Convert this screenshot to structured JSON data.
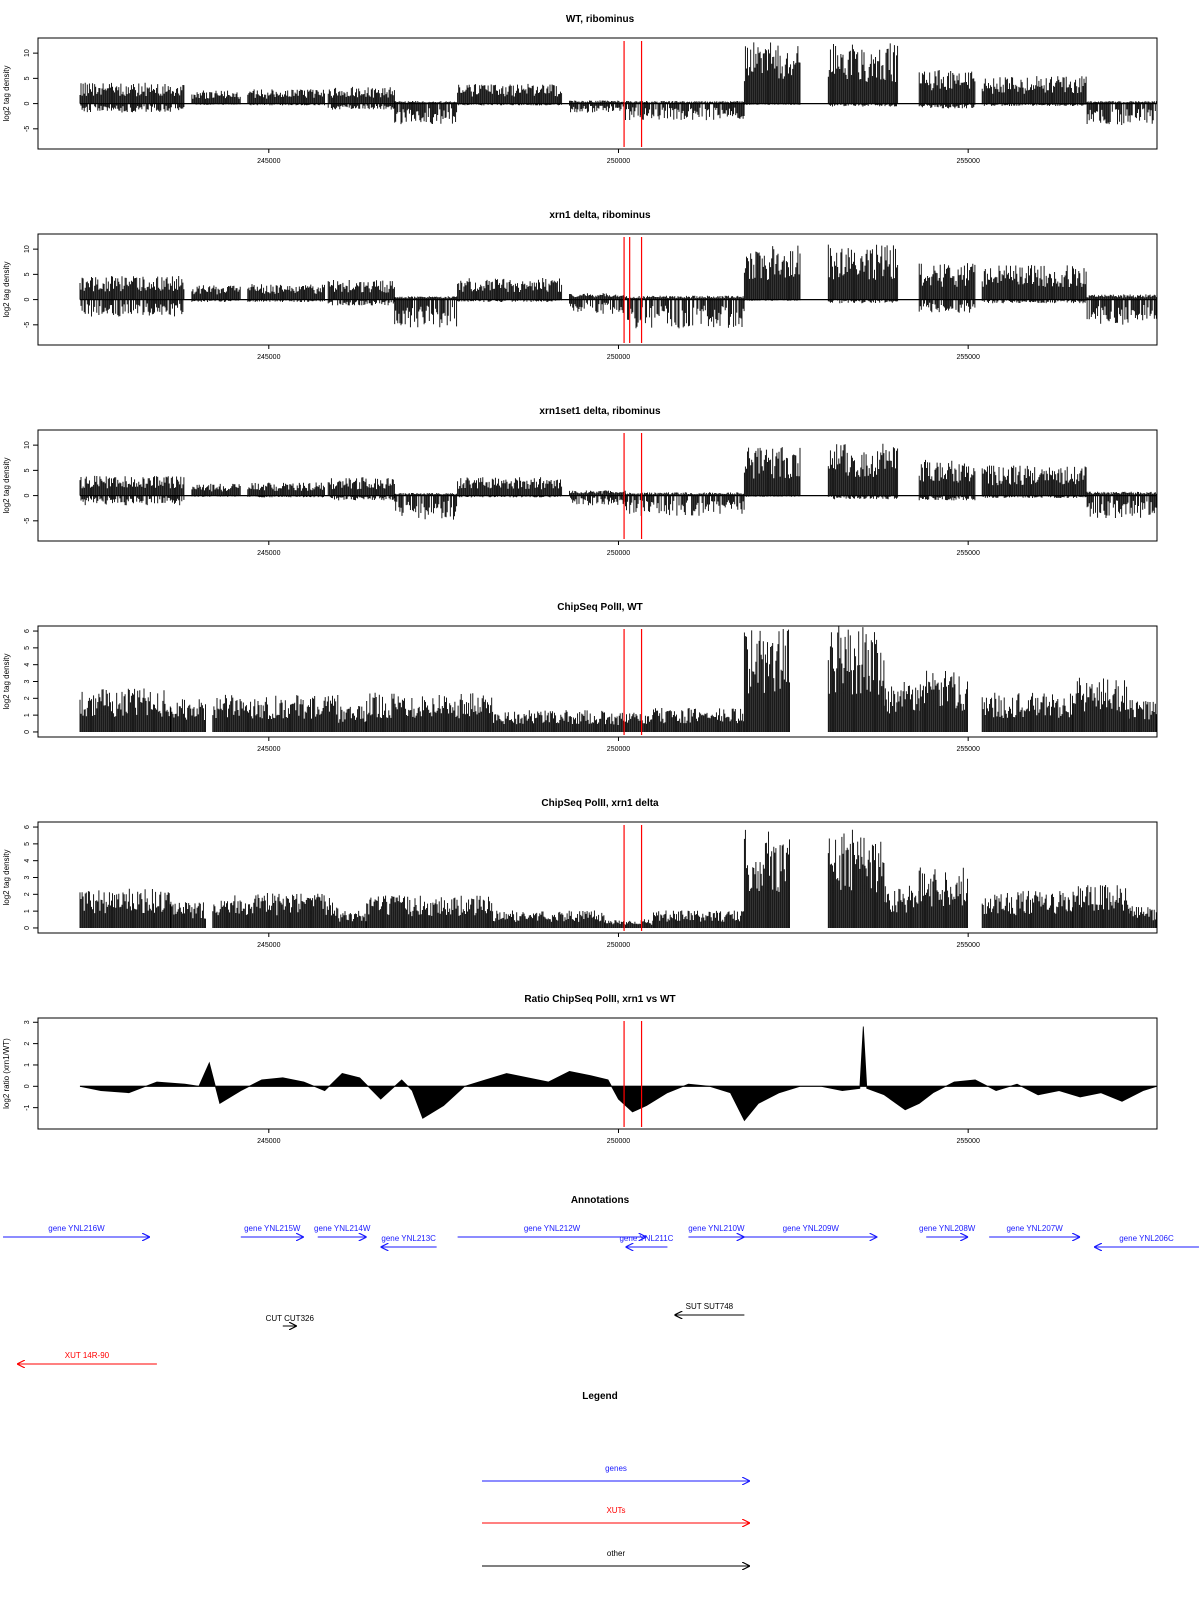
{
  "figure": {
    "type": "genome-browser-tracks"
  },
  "chart_data": [
    {
      "type": "bar",
      "title": "WT, ribominus",
      "ylabel": "log2 tag density",
      "xlim": [
        241700,
        257700
      ],
      "ylim": [
        -9,
        13
      ],
      "xticks": [
        245000,
        250000,
        255000
      ],
      "yticks": [
        -5,
        0,
        5,
        10
      ],
      "ytick_labels": [
        "-5",
        "0",
        "5",
        "10"
      ],
      "markers_x": [
        250080,
        250330
      ],
      "segments": [
        {
          "x": [
            242300,
            243800
          ],
          "pos": 3.2,
          "neg": 1.5
        },
        {
          "x": [
            243900,
            244600
          ],
          "pos": 2.0,
          "neg": 0.2
        },
        {
          "x": [
            244700,
            245800
          ],
          "pos": 2.2,
          "neg": 0.3
        },
        {
          "x": [
            245850,
            246800
          ],
          "pos": 2.6,
          "neg": 1.0
        },
        {
          "x": [
            246800,
            247700
          ],
          "pos": 0.4,
          "neg": 3.4
        },
        {
          "x": [
            247700,
            249200
          ],
          "pos": 3.0,
          "neg": 0.3
        },
        {
          "x": [
            249300,
            250100
          ],
          "pos": 0.5,
          "neg": 1.5
        },
        {
          "x": [
            250100,
            251800
          ],
          "pos": 0.4,
          "neg": 2.8
        },
        {
          "x": [
            251800,
            252600
          ],
          "pos": 9.5,
          "neg": 0.2
        },
        {
          "x": [
            252600,
            253000
          ],
          "pos": 0.0,
          "neg": 0.0
        },
        {
          "x": [
            253000,
            254000
          ],
          "pos": 9.2,
          "neg": 0.5
        },
        {
          "x": [
            254300,
            255100
          ],
          "pos": 5.2,
          "neg": 0.8
        },
        {
          "x": [
            255200,
            256700
          ],
          "pos": 4.2,
          "neg": 0.4
        },
        {
          "x": [
            256700,
            257700
          ],
          "pos": 0.4,
          "neg": 3.6
        }
      ]
    },
    {
      "type": "bar",
      "title": "xrn1 delta, ribominus",
      "ylabel": "log2 tag density",
      "xlim": [
        241700,
        257700
      ],
      "ylim": [
        -9,
        13
      ],
      "xticks": [
        245000,
        250000,
        255000
      ],
      "yticks": [
        -5,
        0,
        5,
        10
      ],
      "ytick_labels": [
        "-5",
        "0",
        "5",
        "10"
      ],
      "markers_x": [
        250080,
        250160,
        250330
      ],
      "segments": [
        {
          "x": [
            242300,
            243800
          ],
          "pos": 3.6,
          "neg": 2.8
        },
        {
          "x": [
            243900,
            244600
          ],
          "pos": 2.2,
          "neg": 0.4
        },
        {
          "x": [
            244700,
            245800
          ],
          "pos": 2.4,
          "neg": 0.4
        },
        {
          "x": [
            245850,
            246800
          ],
          "pos": 3.0,
          "neg": 1.0
        },
        {
          "x": [
            246800,
            247700
          ],
          "pos": 0.5,
          "neg": 4.6
        },
        {
          "x": [
            247700,
            249200
          ],
          "pos": 3.3,
          "neg": 0.4
        },
        {
          "x": [
            249300,
            250100
          ],
          "pos": 1.0,
          "neg": 2.4
        },
        {
          "x": [
            250100,
            251800
          ],
          "pos": 0.6,
          "neg": 4.8
        },
        {
          "x": [
            251800,
            252600
          ],
          "pos": 8.3,
          "neg": 0.2
        },
        {
          "x": [
            252600,
            253000
          ],
          "pos": 0.0,
          "neg": 0.0
        },
        {
          "x": [
            253000,
            254000
          ],
          "pos": 8.6,
          "neg": 0.6
        },
        {
          "x": [
            254300,
            255100
          ],
          "pos": 5.6,
          "neg": 2.2
        },
        {
          "x": [
            255200,
            256700
          ],
          "pos": 5.3,
          "neg": 0.6
        },
        {
          "x": [
            256700,
            257700
          ],
          "pos": 0.8,
          "neg": 4.2
        }
      ]
    },
    {
      "type": "bar",
      "title": "xrn1set1 delta, ribominus",
      "ylabel": "log2 tag density",
      "xlim": [
        241700,
        257700
      ],
      "ylim": [
        -9,
        13
      ],
      "xticks": [
        245000,
        250000,
        255000
      ],
      "yticks": [
        -5,
        0,
        5,
        10
      ],
      "ytick_labels": [
        "-5",
        "0",
        "5",
        "10"
      ],
      "markers_x": [
        250080,
        250330
      ],
      "segments": [
        {
          "x": [
            242300,
            243800
          ],
          "pos": 3.0,
          "neg": 1.6
        },
        {
          "x": [
            243900,
            244600
          ],
          "pos": 1.8,
          "neg": 0.2
        },
        {
          "x": [
            244700,
            245800
          ],
          "pos": 2.0,
          "neg": 0.3
        },
        {
          "x": [
            245850,
            246800
          ],
          "pos": 2.8,
          "neg": 0.8
        },
        {
          "x": [
            246800,
            247700
          ],
          "pos": 0.4,
          "neg": 4.0
        },
        {
          "x": [
            247700,
            249200
          ],
          "pos": 2.8,
          "neg": 0.3
        },
        {
          "x": [
            249300,
            250100
          ],
          "pos": 0.8,
          "neg": 1.6
        },
        {
          "x": [
            250100,
            251800
          ],
          "pos": 0.5,
          "neg": 3.4
        },
        {
          "x": [
            251800,
            252600
          ],
          "pos": 7.5,
          "neg": 0.2
        },
        {
          "x": [
            252600,
            253000
          ],
          "pos": 0.0,
          "neg": 0.0
        },
        {
          "x": [
            253000,
            254000
          ],
          "pos": 8.0,
          "neg": 0.6
        },
        {
          "x": [
            254300,
            255100
          ],
          "pos": 5.5,
          "neg": 0.8
        },
        {
          "x": [
            255200,
            256700
          ],
          "pos": 4.6,
          "neg": 0.4
        },
        {
          "x": [
            256700,
            257700
          ],
          "pos": 0.6,
          "neg": 3.8
        }
      ]
    },
    {
      "type": "bar",
      "title": "ChipSeq PolII, WT",
      "ylabel": "log2 tag density",
      "xlim": [
        241700,
        257700
      ],
      "ylim": [
        -0.3,
        6.3
      ],
      "xticks": [
        245000,
        250000,
        255000
      ],
      "yticks": [
        0,
        1,
        2,
        3,
        4,
        5,
        6
      ],
      "ytick_labels": [
        "0",
        "1",
        "2",
        "3",
        "4",
        "5",
        "6"
      ],
      "markers_x": [
        250080,
        250330
      ],
      "segments": [
        {
          "x": [
            242300,
            243600
          ],
          "pos": 2.0
        },
        {
          "x": [
            243600,
            244100
          ],
          "pos": 1.5
        },
        {
          "x": [
            244100,
            244200
          ],
          "pos": 0.0
        },
        {
          "x": [
            244200,
            246000
          ],
          "pos": 1.7
        },
        {
          "x": [
            246000,
            246400
          ],
          "pos": 1.2
        },
        {
          "x": [
            246400,
            248200
          ],
          "pos": 1.8
        },
        {
          "x": [
            248200,
            249800
          ],
          "pos": 1.0
        },
        {
          "x": [
            249800,
            250500
          ],
          "pos": 0.9
        },
        {
          "x": [
            250500,
            251800
          ],
          "pos": 1.1
        },
        {
          "x": [
            251800,
            252450
          ],
          "pos": 4.8
        },
        {
          "x": [
            252450,
            253000
          ],
          "pos": 0.0
        },
        {
          "x": [
            253000,
            253800
          ],
          "pos": 4.9
        },
        {
          "x": [
            253800,
            254300
          ],
          "pos": 2.3
        },
        {
          "x": [
            254300,
            255000
          ],
          "pos": 2.8
        },
        {
          "x": [
            255000,
            255200
          ],
          "pos": 0.0
        },
        {
          "x": [
            255200,
            256500
          ],
          "pos": 1.8
        },
        {
          "x": [
            256500,
            257300
          ],
          "pos": 2.5
        },
        {
          "x": [
            257300,
            257700
          ],
          "pos": 1.5
        }
      ]
    },
    {
      "type": "bar",
      "title": "ChipSeq PolII, xrn1 delta",
      "ylabel": "log2 tag density",
      "xlim": [
        241700,
        257700
      ],
      "ylim": [
        -0.3,
        6.3
      ],
      "xticks": [
        245000,
        250000,
        255000
      ],
      "yticks": [
        0,
        1,
        2,
        3,
        4,
        5,
        6
      ],
      "ytick_labels": [
        "0",
        "1",
        "2",
        "3",
        "4",
        "5",
        "6"
      ],
      "markers_x": [
        250080,
        250330
      ],
      "segments": [
        {
          "x": [
            242300,
            243600
          ],
          "pos": 1.8
        },
        {
          "x": [
            243600,
            244100
          ],
          "pos": 1.2
        },
        {
          "x": [
            244100,
            244200
          ],
          "pos": 0.0
        },
        {
          "x": [
            244200,
            246000
          ],
          "pos": 1.6
        },
        {
          "x": [
            246000,
            246400
          ],
          "pos": 0.8
        },
        {
          "x": [
            246400,
            248200
          ],
          "pos": 1.5
        },
        {
          "x": [
            248200,
            249800
          ],
          "pos": 0.8
        },
        {
          "x": [
            249800,
            250500
          ],
          "pos": 0.4
        },
        {
          "x": [
            250500,
            251800
          ],
          "pos": 0.8
        },
        {
          "x": [
            251800,
            252450
          ],
          "pos": 4.5
        },
        {
          "x": [
            252450,
            253000
          ],
          "pos": 0.0
        },
        {
          "x": [
            253000,
            253800
          ],
          "pos": 4.5
        },
        {
          "x": [
            253800,
            254300
          ],
          "pos": 2.0
        },
        {
          "x": [
            254300,
            255000
          ],
          "pos": 2.8
        },
        {
          "x": [
            255000,
            255200
          ],
          "pos": 0.0
        },
        {
          "x": [
            255200,
            256500
          ],
          "pos": 1.7
        },
        {
          "x": [
            256500,
            257300
          ],
          "pos": 2.0
        },
        {
          "x": [
            257300,
            257700
          ],
          "pos": 1.0
        }
      ]
    },
    {
      "type": "area",
      "title": "Ratio ChipSeq PolII, xrn1 vs WT",
      "ylabel": "log2 ratio (xrn1/WT)",
      "xlim": [
        241700,
        257700
      ],
      "ylim": [
        -2.0,
        3.2
      ],
      "xticks": [
        245000,
        250000,
        255000
      ],
      "yticks": [
        -1,
        0,
        1,
        2,
        3
      ],
      "ytick_labels": [
        "-1",
        "0",
        "1",
        "2",
        "3"
      ],
      "markers_x": [
        250080,
        250330
      ],
      "x": [
        242300,
        242600,
        243000,
        243400,
        243800,
        244000,
        244150,
        244300,
        244600,
        244900,
        245200,
        245500,
        245800,
        246050,
        246300,
        246600,
        246900,
        247050,
        247200,
        247500,
        247800,
        248100,
        248400,
        248700,
        249000,
        249300,
        249600,
        249850,
        250000,
        250200,
        250400,
        250700,
        251000,
        251300,
        251600,
        251800,
        252000,
        252300,
        252600,
        252900,
        253200,
        253450,
        253500,
        253550,
        253800,
        254100,
        254300,
        254500,
        254800,
        255100,
        255400,
        255700,
        256000,
        256300,
        256600,
        256900,
        257200,
        257500,
        257700
      ],
      "y": [
        0.0,
        -0.2,
        -0.3,
        0.2,
        0.1,
        0.0,
        1.1,
        -0.8,
        -0.2,
        0.3,
        0.4,
        0.2,
        -0.2,
        0.6,
        0.4,
        -0.6,
        0.3,
        -0.2,
        -1.5,
        -0.9,
        0.0,
        0.3,
        0.6,
        0.4,
        0.2,
        0.7,
        0.5,
        0.3,
        -0.6,
        -1.2,
        -0.9,
        -0.3,
        0.1,
        0.0,
        -0.3,
        -1.6,
        -0.8,
        -0.3,
        0.0,
        0.0,
        -0.2,
        -0.1,
        2.8,
        -0.1,
        -0.4,
        -1.1,
        -0.8,
        -0.3,
        0.2,
        0.3,
        -0.2,
        0.1,
        -0.4,
        -0.2,
        -0.5,
        -0.3,
        -0.7,
        -0.2,
        0.0
      ]
    }
  ],
  "annotations": {
    "title": "Annotations",
    "features": [
      {
        "label": "gene YNL216W",
        "x": [
          241200,
          243300
        ],
        "dir": "right",
        "row": 0,
        "color": "#1a1aff"
      },
      {
        "label": "gene YNL215W",
        "x": [
          244600,
          245500
        ],
        "dir": "right",
        "row": 0,
        "color": "#1a1aff"
      },
      {
        "label": "gene YNL214W",
        "x": [
          245700,
          246400
        ],
        "dir": "right",
        "row": 0,
        "color": "#1a1aff"
      },
      {
        "label": "gene YNL213C",
        "x": [
          246600,
          247400
        ],
        "dir": "left",
        "row": 1,
        "color": "#1a1aff"
      },
      {
        "label": "gene YNL212W",
        "x": [
          247700,
          250400
        ],
        "dir": "right",
        "row": 0,
        "color": "#1a1aff"
      },
      {
        "label": "gene YNL211C",
        "x": [
          250100,
          250700
        ],
        "dir": "left",
        "row": 1,
        "color": "#1a1aff"
      },
      {
        "label": "gene YNL210W",
        "x": [
          251000,
          251800
        ],
        "dir": "right",
        "row": 0,
        "color": "#1a1aff"
      },
      {
        "label": "gene YNL209W",
        "x": [
          251800,
          253700
        ],
        "dir": "right",
        "row": 0,
        "color": "#1a1aff"
      },
      {
        "label": "gene YNL208W",
        "x": [
          254400,
          255000
        ],
        "dir": "right",
        "row": 0,
        "color": "#1a1aff"
      },
      {
        "label": "gene YNL207W",
        "x": [
          255300,
          256600
        ],
        "dir": "right",
        "row": 0,
        "color": "#1a1aff"
      },
      {
        "label": "gene YNL206C",
        "x": [
          256800,
          258300
        ],
        "dir": "left",
        "row": 1,
        "color": "#1a1aff"
      },
      {
        "label": "SUT SUT748",
        "x": [
          250800,
          251800
        ],
        "dir": "left",
        "row": 2,
        "color": "#000000"
      },
      {
        "label": "CUT CUT326",
        "x": [
          245200,
          245400
        ],
        "dir": "right",
        "row": 3,
        "color": "#000000"
      },
      {
        "label": "XUT 14R-90",
        "x": [
          241400,
          243400
        ],
        "dir": "left",
        "row": 4,
        "color": "#ff0000"
      }
    ]
  },
  "legend": {
    "title": "Legend",
    "items": [
      {
        "label": "genes",
        "color": "#1a1aff"
      },
      {
        "label": "XUTs",
        "color": "#ff0000"
      },
      {
        "label": "other",
        "color": "#000000"
      }
    ]
  },
  "colors": {
    "signal": "#000000",
    "marker": "#ff0000",
    "gene": "#1a1aff",
    "xut": "#ff0000",
    "other": "#000000"
  }
}
